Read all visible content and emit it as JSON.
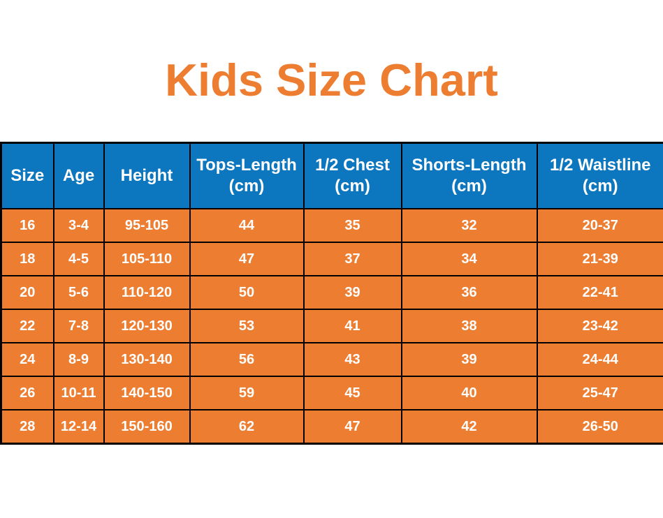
{
  "title": "Kids Size Chart",
  "colors": {
    "title_text": "#ED7D31",
    "header_bg": "#0C76BE",
    "row_bg": "#ED7D31",
    "cell_text": "#FFFFFF",
    "border": "#000000",
    "page_bg": "#FFFFFF"
  },
  "table": {
    "header_display": [
      "Size",
      "Age",
      "Height",
      "Tops-Length\n(cm)",
      "1/2 Chest\n(cm)",
      "Shorts-Length\n(cm)",
      "1/2 Waistline\n(cm)"
    ]
  },
  "chart_data": {
    "type": "table",
    "title": "Kids Size Chart",
    "columns": [
      "Size",
      "Age",
      "Height",
      "Tops-Length (cm)",
      "1/2 Chest (cm)",
      "Shorts-Length (cm)",
      "1/2 Waistline (cm)"
    ],
    "rows": [
      [
        "16",
        "3-4",
        "95-105",
        "44",
        "35",
        "32",
        "20-37"
      ],
      [
        "18",
        "4-5",
        "105-110",
        "47",
        "37",
        "34",
        "21-39"
      ],
      [
        "20",
        "5-6",
        "110-120",
        "50",
        "39",
        "36",
        "22-41"
      ],
      [
        "22",
        "7-8",
        "120-130",
        "53",
        "41",
        "38",
        "23-42"
      ],
      [
        "24",
        "8-9",
        "130-140",
        "56",
        "43",
        "39",
        "24-44"
      ],
      [
        "26",
        "10-11",
        "140-150",
        "59",
        "45",
        "40",
        "25-47"
      ],
      [
        "28",
        "12-14",
        "150-160",
        "62",
        "47",
        "42",
        "26-50"
      ]
    ]
  }
}
